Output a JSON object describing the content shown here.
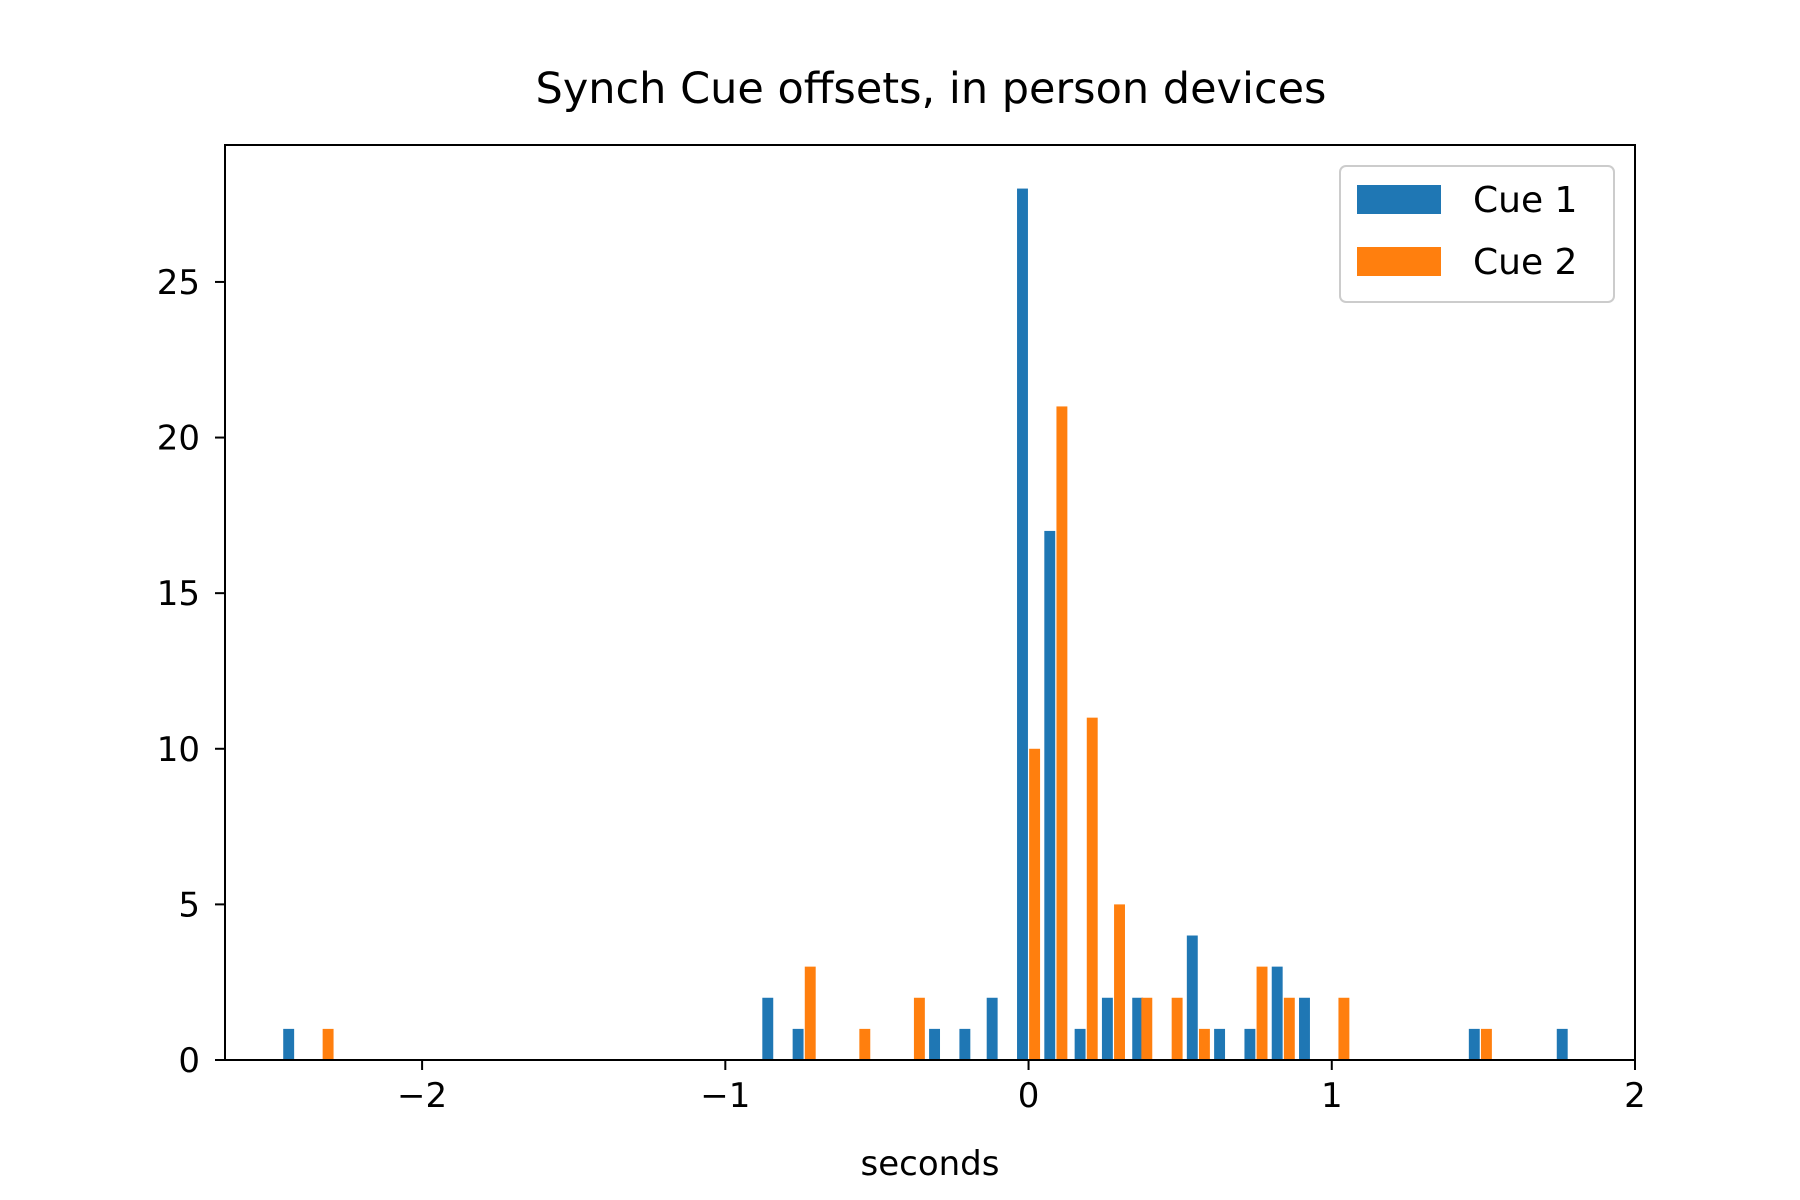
{
  "chart_data": {
    "type": "bar",
    "title": "Synch Cue offsets, in person devices",
    "xlabel": "seconds",
    "ylabel": "",
    "xlim": [
      -2.65,
      2.0
    ],
    "ylim": [
      0,
      29.4
    ],
    "xticks": [
      {
        "value": -2,
        "label": "−2"
      },
      {
        "value": -1,
        "label": "−1"
      },
      {
        "value": 0,
        "label": "0"
      },
      {
        "value": 1,
        "label": "1"
      },
      {
        "value": 2,
        "label": "2"
      }
    ],
    "yticks": [
      {
        "value": 0,
        "label": "0"
      },
      {
        "value": 5,
        "label": "5"
      },
      {
        "value": 10,
        "label": "10"
      },
      {
        "value": 15,
        "label": "15"
      },
      {
        "value": 20,
        "label": "20"
      },
      {
        "value": 25,
        "label": "25"
      }
    ],
    "bar_width": 0.036,
    "legend_position": "top-right",
    "grid": false,
    "series": [
      {
        "name": "Cue 1",
        "color": "#1f77b4",
        "bars": [
          {
            "x": -2.44,
            "y": 1
          },
          {
            "x": -0.86,
            "y": 2
          },
          {
            "x": -0.76,
            "y": 1
          },
          {
            "x": -0.31,
            "y": 1
          },
          {
            "x": -0.21,
            "y": 1
          },
          {
            "x": -0.12,
            "y": 2
          },
          {
            "x": -0.02,
            "y": 28
          },
          {
            "x": 0.07,
            "y": 17
          },
          {
            "x": 0.17,
            "y": 1
          },
          {
            "x": 0.26,
            "y": 2
          },
          {
            "x": 0.36,
            "y": 2
          },
          {
            "x": 0.54,
            "y": 4
          },
          {
            "x": 0.63,
            "y": 1
          },
          {
            "x": 0.73,
            "y": 1
          },
          {
            "x": 0.82,
            "y": 3
          },
          {
            "x": 0.91,
            "y": 2
          },
          {
            "x": 1.47,
            "y": 1
          },
          {
            "x": 1.76,
            "y": 1
          }
        ]
      },
      {
        "name": "Cue 2",
        "color": "#ff7f0e",
        "bars": [
          {
            "x": -2.31,
            "y": 1
          },
          {
            "x": -0.72,
            "y": 3
          },
          {
            "x": -0.54,
            "y": 1
          },
          {
            "x": -0.36,
            "y": 2
          },
          {
            "x": 0.02,
            "y": 10
          },
          {
            "x": 0.11,
            "y": 21
          },
          {
            "x": 0.21,
            "y": 11
          },
          {
            "x": 0.3,
            "y": 5
          },
          {
            "x": 0.39,
            "y": 2
          },
          {
            "x": 0.49,
            "y": 2
          },
          {
            "x": 0.58,
            "y": 1
          },
          {
            "x": 0.77,
            "y": 3
          },
          {
            "x": 0.86,
            "y": 2
          },
          {
            "x": 1.04,
            "y": 2
          },
          {
            "x": 1.51,
            "y": 1
          }
        ]
      }
    ]
  }
}
